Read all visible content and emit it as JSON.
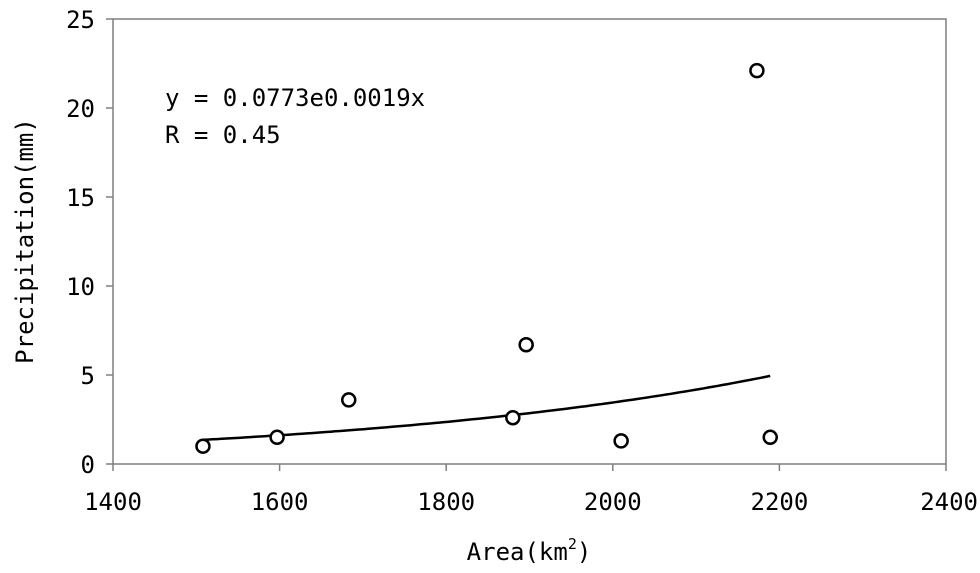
{
  "chart_data": {
    "type": "scatter",
    "title": "",
    "xlabel": "Area(km",
    "xlabel_sup": "2",
    "xlabel_close": ")",
    "ylabel": "Precipitation(mm)",
    "xlim": [
      1400,
      2400
    ],
    "ylim": [
      0,
      25
    ],
    "xticks": [
      1400,
      1600,
      1800,
      2000,
      2200,
      2400
    ],
    "yticks": [
      0,
      5,
      10,
      15,
      20,
      25
    ],
    "grid": false,
    "points": [
      {
        "x": 1508,
        "y": 1.0
      },
      {
        "x": 1597,
        "y": 1.5
      },
      {
        "x": 1683,
        "y": 3.6
      },
      {
        "x": 1880,
        "y": 2.6
      },
      {
        "x": 1896,
        "y": 6.7
      },
      {
        "x": 2010,
        "y": 1.3
      },
      {
        "x": 2173,
        "y": 22.1
      },
      {
        "x": 2189,
        "y": 1.5
      }
    ],
    "trendline": {
      "type": "exponential",
      "a": 0.0773,
      "b": 0.0019,
      "x_range": [
        1508,
        2189
      ]
    },
    "annotations": [
      "y = 0.0773e0.0019x",
      "R = 0.45"
    ]
  }
}
